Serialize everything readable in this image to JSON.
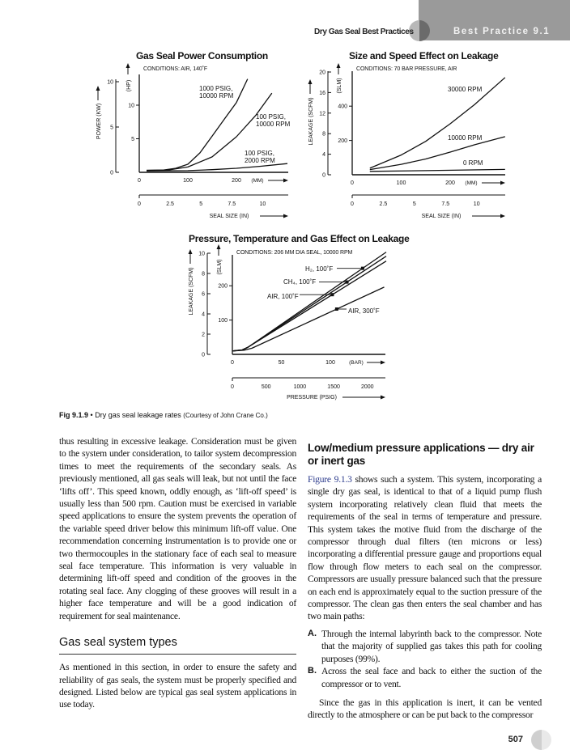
{
  "header": {
    "running_title": "Dry Gas Seal Best Practices",
    "section": "Best Practice 9.1"
  },
  "chart_data": [
    {
      "type": "line",
      "title": "Gas Seal Power Consumption",
      "conditions": "CONDITIONS: AIR, 140˚F",
      "xlabel": "(MM)",
      "x2label": "SEAL SIZE (IN)",
      "ylabel_left": "POWER (KW)",
      "ylabel_right": "(HP)",
      "x_ticks": [
        0,
        100,
        200
      ],
      "x2_ticks": [
        "0",
        "2.5",
        "5",
        "7.5",
        "10"
      ],
      "x2_values": [
        0,
        2.5,
        5,
        7.5,
        10
      ],
      "y_left_ticks": [
        0,
        5,
        10
      ],
      "y_right_ticks": [
        5,
        10
      ],
      "xlim": [
        0,
        300
      ],
      "ylim_hp": [
        0,
        14
      ],
      "series": [
        {
          "name": "1000 PSIG,\n10000 RPM",
          "points": [
            [
              15,
              0.3
            ],
            [
              50,
              0.35
            ],
            [
              75,
              0.6
            ],
            [
              100,
              1.2
            ],
            [
              125,
              2.9
            ],
            [
              150,
              5.4
            ],
            [
              175,
              7.9
            ],
            [
              200,
              10.4
            ],
            [
              223,
              13.9
            ]
          ]
        },
        {
          "name": "100 PSIG,\n10000 RPM",
          "points": [
            [
              15,
              0.3
            ],
            [
              60,
              0.35
            ],
            [
              100,
              0.8
            ],
            [
              150,
              2.3
            ],
            [
              200,
              5.3
            ],
            [
              240,
              8.5
            ],
            [
              273,
              11.8
            ]
          ]
        },
        {
          "name": "100 PSIG,\n2000 RPM",
          "points": [
            [
              15,
              0.2
            ],
            [
              100,
              0.25
            ],
            [
              150,
              0.4
            ],
            [
              200,
              0.6
            ],
            [
              250,
              0.9
            ],
            [
              305,
              1.3
            ]
          ]
        }
      ]
    },
    {
      "type": "line",
      "title": "Size and Speed Effect on Leakage",
      "conditions": "CONDITIONS: 70 BAR PRESSURE, AIR",
      "xlabel": "(MM)",
      "x2label": "SEAL SIZE (IN)",
      "ylabel_left": "LEAKAGE (SCFM)",
      "ylabel_right": "(SLM)",
      "x_ticks": [
        0,
        100,
        200
      ],
      "x2_ticks": [
        "0",
        "2.5",
        "5",
        "7.5",
        "10"
      ],
      "x2_values": [
        0,
        2.5,
        5,
        7.5,
        10
      ],
      "y_left_ticks": [
        0,
        4,
        8,
        12,
        16,
        20
      ],
      "y_right_ticks": [
        200,
        400
      ],
      "xlim": [
        0,
        310
      ],
      "ylim_slm": [
        0,
        600
      ],
      "series": [
        {
          "name": "30000 RPM",
          "points": [
            [
              36,
              38
            ],
            [
              100,
              115
            ],
            [
              150,
              195
            ],
            [
              200,
              297
            ],
            [
              250,
              410
            ],
            [
              312,
              567
            ]
          ]
        },
        {
          "name": "10000 RPM",
          "points": [
            [
              36,
              30
            ],
            [
              100,
              61
            ],
            [
              150,
              92
            ],
            [
              200,
              132
            ],
            [
              250,
              175
            ],
            [
              312,
              222
            ]
          ]
        },
        {
          "name": "0 RPM",
          "points": [
            [
              36,
              20
            ],
            [
              150,
              24
            ],
            [
              312,
              31
            ]
          ]
        }
      ]
    },
    {
      "type": "line",
      "title": "Pressure, Temperature and Gas Effect on Leakage",
      "conditions": "CONDITIONS: 206 MM DIA SEAL, 10000 RPM",
      "xlabel": "(BAR)",
      "x2label": "PRESSURE (PSIG)",
      "ylabel_left": "LEAKAGE (SCFM)",
      "ylabel_right": "(SLM)",
      "x_ticks": [
        0,
        50,
        100
      ],
      "x2_ticks": [
        "0",
        "500",
        "1000",
        "1500",
        "2000"
      ],
      "x2_values": [
        0,
        500,
        1000,
        1500,
        2000
      ],
      "y_left_ticks": [
        0,
        2,
        4,
        6,
        8,
        10
      ],
      "y_right_ticks": [
        100,
        200
      ],
      "xlim": [
        0,
        157
      ],
      "ylim_slm": [
        0,
        300
      ],
      "series": [
        {
          "name": "H₂, 100˚F",
          "points": [
            [
              0,
              10
            ],
            [
              10,
              13
            ],
            [
              16,
              21
            ],
            [
              157,
              298
            ]
          ],
          "marker_x": 133
        },
        {
          "name": "CH₄, 100˚F",
          "points": [
            [
              0,
              10
            ],
            [
              10,
              13
            ],
            [
              16,
              21
            ],
            [
              157,
              286
            ]
          ],
          "marker_x": 117
        },
        {
          "name": "AIR, 100˚F",
          "points": [
            [
              0,
              10
            ],
            [
              10,
              13
            ],
            [
              16,
              21
            ],
            [
              157,
              272
            ]
          ],
          "marker_x": 102
        },
        {
          "name": "AIR, 300˚F",
          "points": [
            [
              0,
              10
            ],
            [
              12,
              12
            ],
            [
              20,
              18
            ],
            [
              155,
              196
            ]
          ],
          "marker_x": 106.5
        }
      ]
    }
  ],
  "caption": {
    "label": "Fig 9.1.9",
    "bullet": "•",
    "text": "Dry gas seal leakage rates",
    "credit": "(Courtesy of John Crane Co.)"
  },
  "left_column": {
    "para1": "thus resulting in excessive leakage. Consideration must be given to the system under consideration, to tailor system decompression times to meet the requirements of the secondary seals. As previously mentioned, all gas seals will leak, but not until the face ‘lifts off’. This speed known, oddly enough, as ‘lift-off speed’ is usually less than 500 rpm. Caution must be exercised in variable speed applications to ensure the system prevents the operation of the variable speed driver below this minimum lift-off value. One recommendation concerning instrumentation is to provide one or two thermocouples in the stationary face of each seal to measure seal face temperature. This information is very valuable in determining lift-off speed and condition of the grooves in the rotating seal face. Any clogging of these grooves will result in a higher face temperature and will be a good indication of requirement for seal maintenance.",
    "heading": "Gas seal system types",
    "para2": "As mentioned in this section, in order to ensure the safety and reliability of gas seals, the system must be properly specified and designed. Listed below are typical gas seal system applications in use today."
  },
  "right_column": {
    "heading": "Low/medium pressure applications — dry air or inert gas",
    "para1_link": "Figure 9.1.3",
    "para1": " shows such a system. This system, incorporating a single dry gas seal, is identical to that of a liquid pump flush system incorporating relatively clean fluid that meets the requirements of the seal in terms of temperature and pressure. This system takes the motive fluid from the discharge of the compressor through dual filters (ten microns or less) incorporating a differential pressure gauge and proportions equal flow through flow meters to each seal on the compressor. Compressors are usually pressure balanced such that the pressure on each end is approximately equal to the suction pressure of the compressor. The clean gas then enters the seal chamber and has two main paths:",
    "list": [
      {
        "marker": "A.",
        "text": "Through the internal labyrinth back to the compressor. Note that the majority of supplied gas takes this path for cooling purposes (99%)."
      },
      {
        "marker": "B.",
        "text": "Across the seal face and back to either the suction of the compressor or to vent."
      }
    ],
    "para2": "Since the gas in this application is inert, it can be vented directly to the atmosphere or can be put back to the compressor"
  },
  "page_number": "507"
}
